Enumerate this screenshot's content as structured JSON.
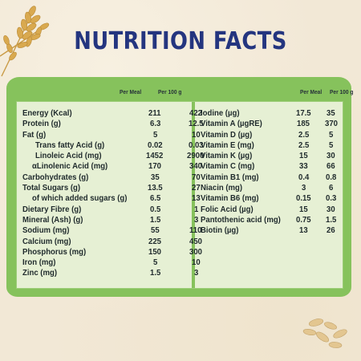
{
  "title": "NUTRITION FACTS",
  "colors": {
    "title": "#24357f",
    "panel_green": "#86c25c",
    "table_bg": "#e6f0d4",
    "background": "#f2e8d6"
  },
  "icons": [
    "wheat-stalks-illustration",
    "oat-grains-illustration"
  ],
  "left": {
    "header_per_meal": "Per Meal",
    "header_per_100g": "Per 100 g",
    "rows": [
      {
        "name": "Energy (Kcal)",
        "per_meal": "211",
        "per_100g": "422"
      },
      {
        "name": "Protein (g)",
        "per_meal": "6.3",
        "per_100g": "12.5"
      },
      {
        "name": "Fat (g)",
        "per_meal": "5",
        "per_100g": "10"
      },
      {
        "name": "Trans fatty Acid (g)",
        "per_meal": "0.02",
        "per_100g": "0.03"
      },
      {
        "name": "Linoleic Acid (mg)",
        "per_meal": "1452",
        "per_100g": "2900"
      },
      {
        "name": "αLinolenic Acid (mg)",
        "per_meal": "170",
        "per_100g": "340"
      },
      {
        "name": "Carbohydrates (g)",
        "per_meal": "35",
        "per_100g": "70"
      },
      {
        "name": "Total Sugars (g)",
        "per_meal": "13.5",
        "per_100g": "27"
      },
      {
        "name": "of which added sugars (g)",
        "per_meal": "6.5",
        "per_100g": "13"
      },
      {
        "name": "Dietary Fibre (g)",
        "per_meal": "0.5",
        "per_100g": "1"
      },
      {
        "name": "Mineral (Ash) (g)",
        "per_meal": "1.5",
        "per_100g": "3"
      },
      {
        "name": "Sodium (mg)",
        "per_meal": "55",
        "per_100g": "110"
      },
      {
        "name": "Calcium (mg)",
        "per_meal": "225",
        "per_100g": "450"
      },
      {
        "name": "Phosphorus (mg)",
        "per_meal": "150",
        "per_100g": "300"
      },
      {
        "name": "Iron (mg)",
        "per_meal": "5",
        "per_100g": "10"
      },
      {
        "name": "Zinc (mg)",
        "per_meal": "1.5",
        "per_100g": "3"
      }
    ]
  },
  "right": {
    "header_per_meal": "Per Meal",
    "header_per_100g": "Per 100 g",
    "rows": [
      {
        "name": "Iodine (µg)",
        "per_meal": "17.5",
        "per_100g": "35"
      },
      {
        "name": "Vitamin A (µgRE)",
        "per_meal": "185",
        "per_100g": "370"
      },
      {
        "name": "Vitamin D (µg)",
        "per_meal": "2.5",
        "per_100g": "5"
      },
      {
        "name": "Vitamin E (mg)",
        "per_meal": "2.5",
        "per_100g": "5"
      },
      {
        "name": "Vitamin K (µg)",
        "per_meal": "15",
        "per_100g": "30"
      },
      {
        "name": "Vitamin C (mg)",
        "per_meal": "33",
        "per_100g": "66"
      },
      {
        "name": "Vitamin B1 (mg)",
        "per_meal": "0.4",
        "per_100g": "0.8"
      },
      {
        "name": "Niacin (mg)",
        "per_meal": "3",
        "per_100g": "6"
      },
      {
        "name": "Vitamin B6 (mg)",
        "per_meal": "0.15",
        "per_100g": "0.3"
      },
      {
        "name": "Folic Acid (µg)",
        "per_meal": "15",
        "per_100g": "30"
      },
      {
        "name": "Pantothenic acid (mg)",
        "per_meal": "0.75",
        "per_100g": "1.5"
      },
      {
        "name": "Biotin (µg)",
        "per_meal": "13",
        "per_100g": "26"
      }
    ]
  }
}
